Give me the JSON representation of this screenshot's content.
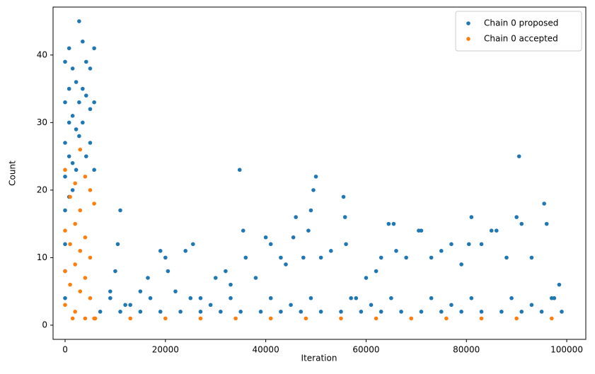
{
  "chart_data": {
    "type": "scatter",
    "xlabel": "Iteration",
    "ylabel": "Count",
    "xlim": [
      -2400,
      103800
    ],
    "ylim": [
      -2.1,
      47.1
    ],
    "xticks": [
      0,
      20000,
      40000,
      60000,
      80000,
      100000
    ],
    "yticks": [
      0,
      10,
      20,
      30,
      40
    ],
    "legend": "upper right",
    "series": [
      {
        "name": "Chain 0 proposed",
        "color": "#1f77b4",
        "x": [
          0,
          0,
          0,
          0,
          0,
          0,
          0,
          0,
          800,
          800,
          800,
          800,
          800,
          1500,
          1500,
          1500,
          1500,
          2200,
          2200,
          2200,
          2800,
          2800,
          2800,
          3500,
          3500,
          3500,
          4200,
          4200,
          4200,
          5000,
          5000,
          5000,
          5800,
          5800,
          5800,
          10500,
          11000,
          10000,
          9000,
          12000,
          15000,
          16500,
          19000,
          20000,
          20500,
          22000,
          24000,
          25500,
          27000,
          30000,
          32000,
          33000,
          34800,
          35500,
          36000,
          38000,
          40000,
          41000,
          43000,
          44000,
          45500,
          46000,
          47500,
          48500,
          49000,
          49500,
          50000,
          51000,
          53000,
          55500,
          55800,
          56000,
          58000,
          60000,
          62000,
          63000,
          64500,
          65500,
          66000,
          68000,
          70500,
          71000,
          73000,
          75000,
          77000,
          79000,
          80500,
          81000,
          83000,
          85000,
          86000,
          88000,
          90000,
          90500,
          91000,
          93000,
          95500,
          96000,
          97500,
          98500,
          7000,
          11000,
          15000,
          19000,
          23000,
          27000,
          31000,
          35000,
          39000,
          43000,
          47000,
          51000,
          55000,
          59000,
          63000,
          67000,
          71000,
          75000,
          79000,
          83000,
          87000,
          91000,
          95000,
          99000,
          9000,
          17000,
          25000,
          33000,
          41000,
          49000,
          57000,
          65000,
          73000,
          81000,
          89000,
          97000,
          13000,
          29000,
          45000,
          61000,
          77000,
          93000
        ],
        "values": [
          39,
          33,
          27,
          22,
          17,
          12,
          8,
          4,
          41,
          35,
          30,
          25,
          19,
          38,
          31,
          24,
          20,
          36,
          29,
          23,
          45,
          33,
          28,
          42,
          35,
          30,
          39,
          34,
          25,
          38,
          32,
          27,
          41,
          33,
          23,
          12,
          17,
          8,
          5,
          3,
          5,
          7,
          11,
          10,
          8,
          5,
          11,
          12,
          4,
          7,
          8,
          6,
          23,
          14,
          10,
          7,
          13,
          12,
          10,
          9,
          13,
          16,
          10,
          14,
          17,
          20,
          22,
          10,
          11,
          19,
          16,
          12,
          4,
          7,
          8,
          10,
          15,
          15,
          11,
          10,
          14,
          14,
          10,
          11,
          12,
          9,
          12,
          16,
          12,
          14,
          14,
          10,
          16,
          25,
          15,
          10,
          18,
          15,
          4,
          6,
          2,
          2,
          2,
          2,
          2,
          2,
          2,
          2,
          2,
          2,
          2,
          2,
          2,
          2,
          2,
          2,
          2,
          2,
          2,
          2,
          2,
          2,
          2,
          2,
          4,
          4,
          4,
          4,
          4,
          4,
          4,
          4,
          4,
          4,
          4,
          4,
          3,
          3,
          3,
          3,
          3,
          3
        ]
      },
      {
        "name": "Chain 0 accepted",
        "color": "#ff7f0e",
        "x": [
          0,
          0,
          0,
          0,
          1000,
          1000,
          1000,
          2000,
          2000,
          2000,
          2000,
          3000,
          3000,
          3000,
          3000,
          4000,
          4000,
          4000,
          5000,
          5000,
          5000,
          5800,
          5800,
          1500,
          4000,
          6000,
          13000,
          20000,
          27000,
          34000,
          41000,
          48000,
          55000,
          62000,
          69000,
          76000,
          83000,
          90000,
          97000
        ],
        "values": [
          23,
          14,
          8,
          3,
          19,
          12,
          6,
          21,
          15,
          9,
          2,
          26,
          17,
          11,
          5,
          22,
          13,
          7,
          20,
          10,
          4,
          18,
          1,
          1,
          1,
          1,
          1,
          1,
          1,
          1,
          1,
          1,
          1,
          1,
          1,
          1,
          1,
          1,
          1
        ]
      }
    ]
  }
}
